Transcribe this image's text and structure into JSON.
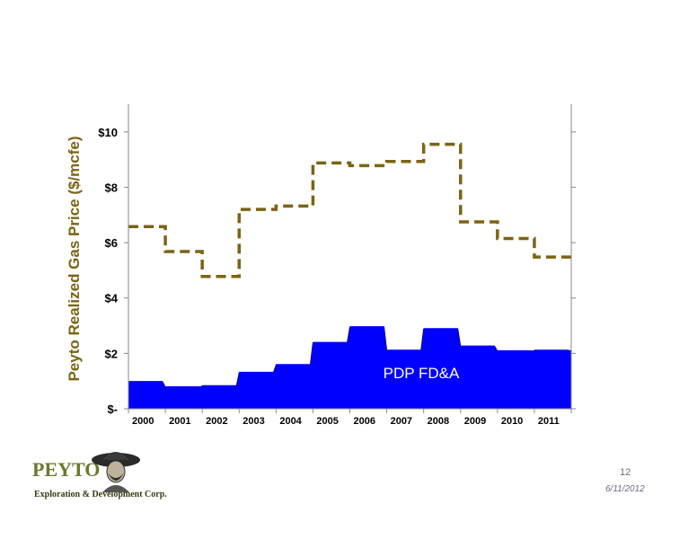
{
  "chart_data": {
    "type": "area",
    "ylabel": "Peyto Realized Gas Price ($/mcfe)",
    "ylim": [
      0,
      11
    ],
    "y_ticks": [
      {
        "value": 0,
        "label": "$-"
      },
      {
        "value": 2,
        "label": "$2"
      },
      {
        "value": 4,
        "label": "$4"
      },
      {
        "value": 6,
        "label": "$6"
      },
      {
        "value": 8,
        "label": "$8"
      },
      {
        "value": 10,
        "label": "$10"
      }
    ],
    "categories": [
      "2000",
      "2001",
      "2002",
      "2003",
      "2004",
      "2005",
      "2006",
      "2007",
      "2008",
      "2009",
      "2010",
      "2011"
    ],
    "grid": false,
    "series": [
      {
        "name": "",
        "type": "step-line-dashed",
        "color": "#7b6414",
        "values": [
          6.58,
          5.68,
          4.78,
          7.2,
          7.32,
          8.88,
          8.78,
          8.93,
          9.55,
          6.75,
          6.15,
          5.48
        ]
      },
      {
        "name": "PDP FD&A",
        "type": "step-area",
        "color": "#0000ff",
        "values": [
          0.97,
          0.78,
          0.82,
          1.3,
          1.58,
          2.38,
          2.95,
          2.1,
          2.88,
          2.25,
          2.08,
          2.1
        ]
      }
    ]
  },
  "footer": {
    "logo_text": "PEYTO",
    "logo_subtitle": "Exploration & Development Corp.",
    "page_number": "12",
    "date": "6/11/2012"
  }
}
